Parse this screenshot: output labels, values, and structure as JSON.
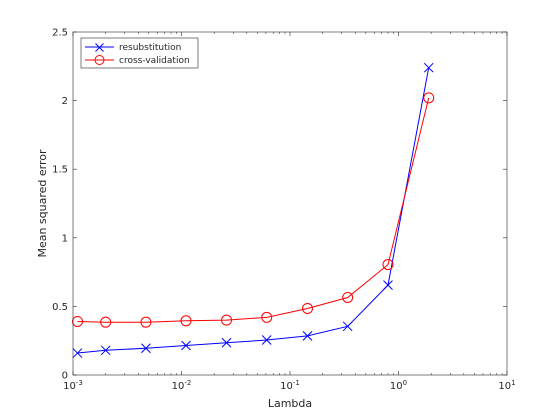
{
  "chart_data": {
    "type": "line",
    "title": "",
    "xlabel": "Lambda",
    "ylabel": "Mean squared error",
    "xscale": "log",
    "xlim": [
      0.001,
      10
    ],
    "ylim": [
      0,
      2.5
    ],
    "grid": false,
    "legend_position": "top-left",
    "x_ticks": [
      {
        "value": 0.001,
        "base": "10",
        "exp": "-3"
      },
      {
        "value": 0.01,
        "base": "10",
        "exp": "-2"
      },
      {
        "value": 0.1,
        "base": "10",
        "exp": "-1"
      },
      {
        "value": 1,
        "base": "10",
        "exp": "0"
      },
      {
        "value": 10,
        "base": "10",
        "exp": "1"
      }
    ],
    "y_ticks": [
      {
        "value": 0,
        "label": "0"
      },
      {
        "value": 0.5,
        "label": "0.5"
      },
      {
        "value": 1,
        "label": "1"
      },
      {
        "value": 1.5,
        "label": "1.5"
      },
      {
        "value": 2,
        "label": "2"
      },
      {
        "value": 2.5,
        "label": "2.5"
      }
    ],
    "series": [
      {
        "name": "resubstitution",
        "color": "#0000ff",
        "marker": "x",
        "x": [
          0.0011,
          0.002,
          0.0047,
          0.011,
          0.026,
          0.061,
          0.145,
          0.34,
          0.8,
          1.9
        ],
        "y": [
          0.16,
          0.18,
          0.195,
          0.215,
          0.235,
          0.255,
          0.285,
          0.355,
          0.655,
          2.24
        ]
      },
      {
        "name": "cross-validation",
        "color": "#ff0000",
        "marker": "o",
        "x": [
          0.0011,
          0.002,
          0.0047,
          0.011,
          0.026,
          0.061,
          0.145,
          0.34,
          0.8,
          1.9
        ],
        "y": [
          0.39,
          0.385,
          0.385,
          0.395,
          0.4,
          0.42,
          0.485,
          0.565,
          0.805,
          2.02
        ]
      }
    ]
  }
}
